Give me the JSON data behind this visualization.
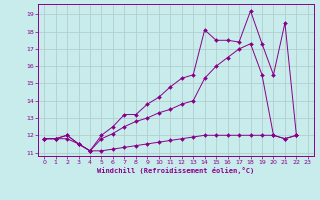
{
  "xlabel": "Windchill (Refroidissement éolien,°C)",
  "bg_color": "#c8ecec",
  "line_color": "#880088",
  "grid_color": "#b0c8c8",
  "xlim": [
    -0.5,
    23.5
  ],
  "ylim": [
    10.8,
    19.6
  ],
  "yticks": [
    11,
    12,
    13,
    14,
    15,
    16,
    17,
    18,
    19
  ],
  "xticks": [
    0,
    1,
    2,
    3,
    4,
    5,
    6,
    7,
    8,
    9,
    10,
    11,
    12,
    13,
    14,
    15,
    16,
    17,
    18,
    19,
    20,
    21,
    22,
    23
  ],
  "line1_x": [
    0,
    1,
    2,
    3,
    4,
    5,
    6,
    7,
    8,
    9,
    10,
    11,
    12,
    13,
    14,
    15,
    16,
    17,
    18,
    19,
    20,
    21,
    22
  ],
  "line1_y": [
    11.8,
    11.8,
    11.8,
    11.5,
    11.1,
    11.1,
    11.2,
    11.3,
    11.4,
    11.5,
    11.6,
    11.7,
    11.8,
    11.9,
    12.0,
    12.0,
    12.0,
    12.0,
    12.0,
    12.0,
    12.0,
    11.8,
    12.0
  ],
  "line2_x": [
    0,
    1,
    2,
    3,
    4,
    5,
    6,
    7,
    8,
    9,
    10,
    11,
    12,
    13,
    14,
    15,
    16,
    17,
    18,
    19,
    20,
    21,
    22
  ],
  "line2_y": [
    11.8,
    11.8,
    12.0,
    11.5,
    11.1,
    11.8,
    12.1,
    12.5,
    12.8,
    13.0,
    13.3,
    13.5,
    13.8,
    14.0,
    15.3,
    16.0,
    16.5,
    17.0,
    17.3,
    15.5,
    12.0,
    11.8,
    12.0
  ],
  "line3_x": [
    0,
    1,
    2,
    3,
    4,
    5,
    6,
    7,
    8,
    9,
    10,
    11,
    12,
    13,
    14,
    15,
    16,
    17,
    18,
    19,
    20,
    21,
    22
  ],
  "line3_y": [
    11.8,
    11.8,
    12.0,
    11.5,
    11.1,
    12.0,
    12.5,
    13.2,
    13.2,
    13.8,
    14.2,
    14.8,
    15.3,
    15.5,
    18.1,
    17.5,
    17.5,
    17.4,
    19.2,
    17.3,
    15.5,
    18.5,
    12.0
  ]
}
